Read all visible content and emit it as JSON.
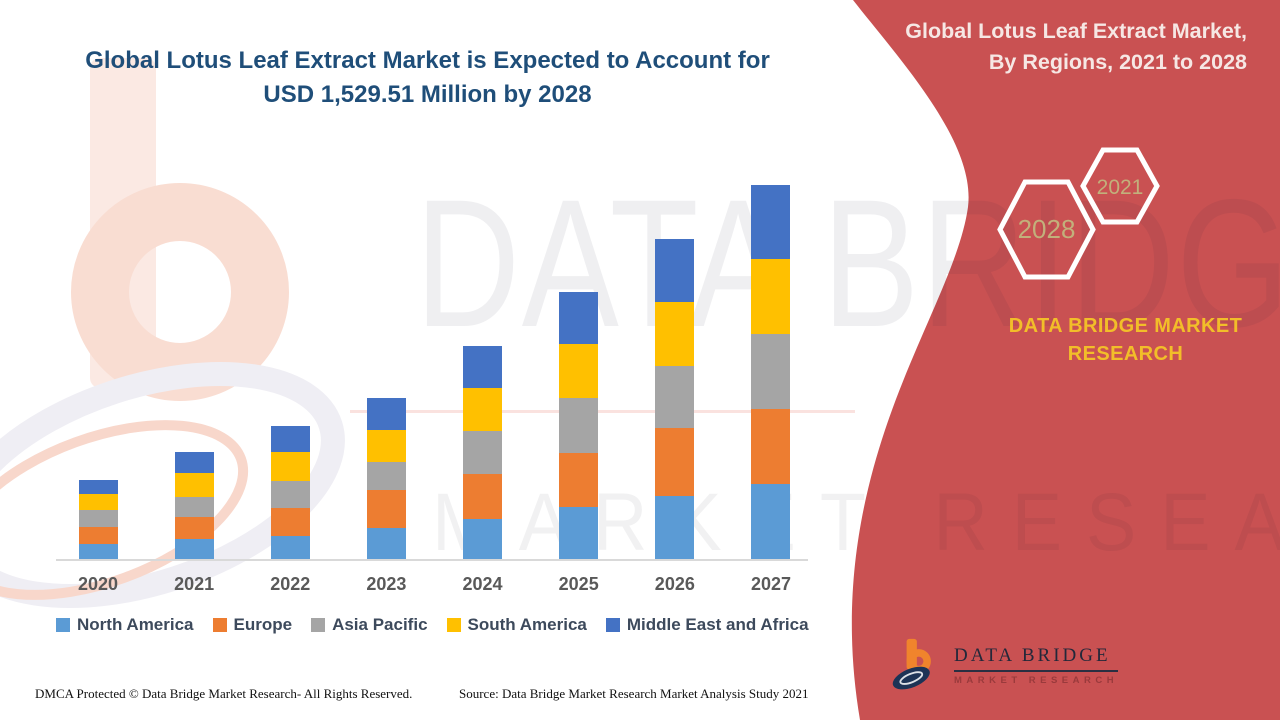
{
  "header": {
    "title_line1": "Global Lotus Leaf Extract Market is Expected to Account for",
    "title_line2": "USD 1,529.51 Million by 2028",
    "title_color": "#1F4E79"
  },
  "side_panel": {
    "bg_color": "#C95152",
    "title_line1": "Global Lotus Leaf Extract Market,",
    "title_line2": "By Regions, 2021 to 2028",
    "hexagons": [
      {
        "label": "2021"
      },
      {
        "label": "2028"
      }
    ],
    "brand_text": "DATA BRIDGE MARKET RESEARCH",
    "brand_color": "#F2BE29"
  },
  "chart_data": {
    "type": "bar",
    "stacked": true,
    "title": "Global Lotus Leaf Extract Market is Expected to Account for USD 1,529.51 Million by 2028",
    "xlabel": "",
    "ylabel": "",
    "value_note": "relative units estimated from bar heights; chart displays no value axis",
    "ylim": [
      0,
      400
    ],
    "grid": false,
    "legend_position": "bottom",
    "categories": [
      "2020",
      "2021",
      "2022",
      "2023",
      "2024",
      "2025",
      "2026",
      "2027"
    ],
    "series": [
      {
        "name": "North America",
        "color": "#5B9BD5",
        "values": [
          16,
          21,
          24,
          32,
          41,
          53,
          64,
          76
        ]
      },
      {
        "name": "Europe",
        "color": "#ED7D31",
        "values": [
          17,
          22,
          28,
          38,
          45,
          54,
          68,
          75
        ]
      },
      {
        "name": "Asia Pacific",
        "color": "#A5A5A5",
        "values": [
          17,
          20,
          27,
          28,
          43,
          55,
          62,
          75
        ]
      },
      {
        "name": "South America",
        "color": "#FFC000",
        "values": [
          16,
          24,
          29,
          32,
          43,
          54,
          64,
          75
        ]
      },
      {
        "name": "Middle East and Africa",
        "color": "#4472C4",
        "values": [
          14,
          21,
          26,
          32,
          42,
          52,
          63,
          74
        ]
      }
    ],
    "stack_totals": [
      80,
      108,
      134,
      162,
      214,
      268,
      321,
      375
    ]
  },
  "watermarks": {
    "line1": "DATA BRIDGE",
    "line2": "MARKET RESEARCH"
  },
  "footer": {
    "dmca": "DMCA Protected © Data Bridge Market Research- All Rights Reserved.",
    "source": "Source: Data Bridge Market Research Market Analysis Study 2021"
  },
  "logo": {
    "name_text": "DATA BRIDGE",
    "sub_text": "MARKET RESEARCH"
  }
}
